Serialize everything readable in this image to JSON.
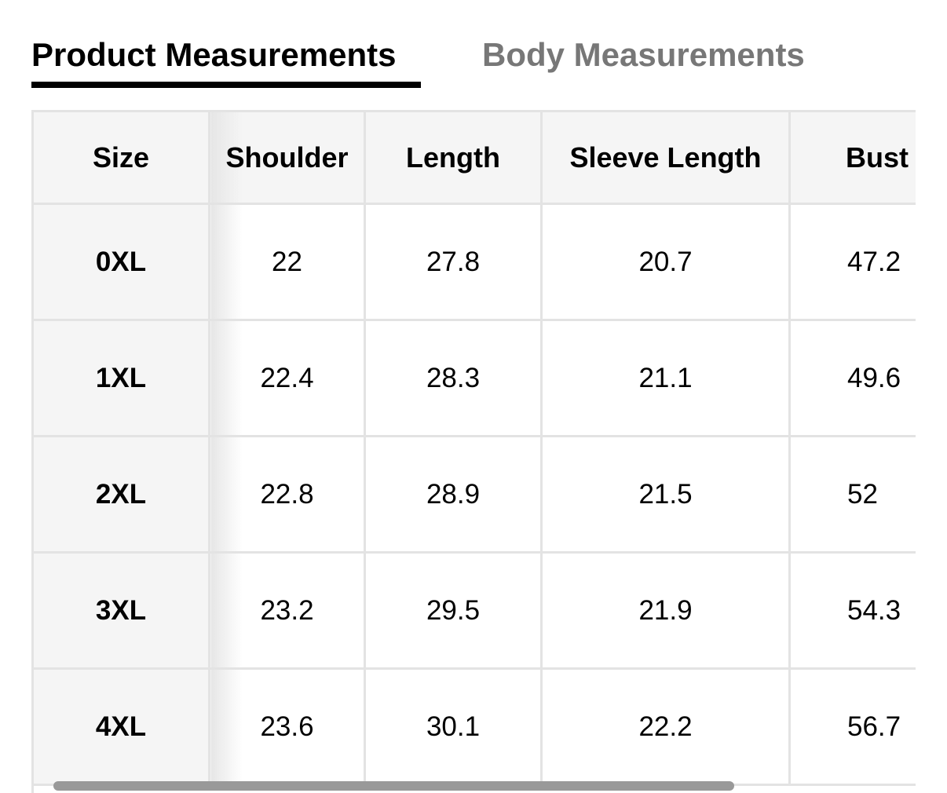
{
  "tabs": [
    {
      "label": "Product Measurements",
      "active": true
    },
    {
      "label": "Body Measurements",
      "active": false
    }
  ],
  "table": {
    "headers": [
      "Size",
      "Shoulder",
      "Length",
      "Sleeve Length",
      "Bust"
    ],
    "rows": [
      [
        "0XL",
        "22",
        "27.8",
        "20.7",
        "47.2"
      ],
      [
        "1XL",
        "22.4",
        "28.3",
        "21.1",
        "49.6"
      ],
      [
        "2XL",
        "22.8",
        "28.9",
        "21.5",
        "52"
      ],
      [
        "3XL",
        "23.2",
        "29.5",
        "21.9",
        "54.3"
      ],
      [
        "4XL",
        "23.6",
        "30.1",
        "22.2",
        "56.7"
      ]
    ]
  },
  "colors": {
    "active_tab": "#000000",
    "inactive_tab": "#777777",
    "header_bg": "#f5f5f5",
    "border": "#e3e3e3"
  }
}
